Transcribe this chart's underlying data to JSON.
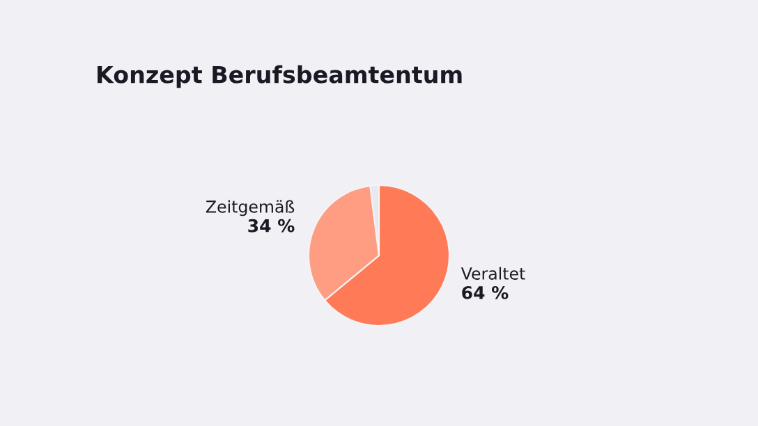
{
  "chart_data": {
    "type": "pie",
    "title": "Konzept Berufsbeamtentum",
    "categories": [
      "Veraltet",
      "Zeitgemäß",
      null
    ],
    "values": [
      64,
      34,
      2
    ],
    "colors": [
      "#ff7b57",
      "#ff9d82",
      "#e9e8ee"
    ],
    "value_labels": [
      "64 %",
      "34 %",
      null
    ]
  }
}
